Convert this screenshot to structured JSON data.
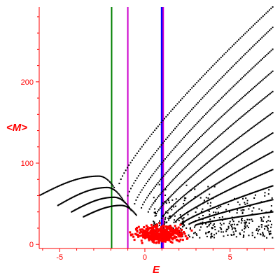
{
  "chart_data": {
    "type": "scatter",
    "xlabel": "E",
    "ylabel": "<M>",
    "xlim": [
      -6.2,
      7.6
    ],
    "ylim": [
      -5,
      292
    ],
    "x_ticks": [
      -5,
      0,
      5
    ],
    "y_ticks": [
      0,
      100,
      200
    ],
    "grid": false,
    "legend": "none",
    "vertical_lines": [
      {
        "x": -1.95,
        "color": "#008000"
      },
      {
        "x": -1.0,
        "color": "#cc00cc"
      },
      {
        "x": 1.0,
        "color": "#0000ff"
      },
      {
        "x": 1.08,
        "color": "#cc00cc"
      }
    ],
    "series": [
      {
        "color": "#000000",
        "description_points": "black curves",
        "curves": [
          {
            "x_start": -6.2,
            "y_start": 60,
            "x_peak": -2.7,
            "y_peak": 84,
            "x_end": -1.8,
            "y_end": 70
          },
          {
            "x_start": -5.1,
            "y_start": 48,
            "x_peak": -2.2,
            "y_peak": 70,
            "x_end": -1.2,
            "y_end": 52
          },
          {
            "x_start": -4.3,
            "y_start": 40,
            "x_peak": -1.8,
            "y_peak": 58,
            "x_end": -0.8,
            "y_end": 42
          },
          {
            "x_start": -3.6,
            "y_start": 34,
            "x_peak": -1.4,
            "y_peak": 48,
            "x_end": -0.5,
            "y_end": 36
          }
        ],
        "fans": [
          {
            "x0": -1.5,
            "y0": 75,
            "x1": 7.5,
            "y1": 292
          },
          {
            "x0": -1.0,
            "y0": 60,
            "x1": 7.5,
            "y1": 267
          },
          {
            "x0": -0.6,
            "y0": 50,
            "x1": 7.5,
            "y1": 240
          },
          {
            "x0": -0.2,
            "y0": 45,
            "x1": 7.5,
            "y1": 213
          },
          {
            "x0": 0.2,
            "y0": 40,
            "x1": 7.5,
            "y1": 188
          },
          {
            "x0": 0.6,
            "y0": 35,
            "x1": 7.5,
            "y1": 162
          },
          {
            "x0": 1.0,
            "y0": 32,
            "x1": 7.5,
            "y1": 137
          },
          {
            "x0": 1.4,
            "y0": 30,
            "x1": 7.5,
            "y1": 114
          },
          {
            "x0": 1.8,
            "y0": 28,
            "x1": 7.5,
            "y1": 92
          },
          {
            "x0": 2.2,
            "y0": 26,
            "x1": 7.5,
            "y1": 72
          },
          {
            "x0": 2.6,
            "y0": 25,
            "x1": 7.5,
            "y1": 55
          },
          {
            "x0": 3.0,
            "y0": 24,
            "x1": 7.5,
            "y1": 40
          }
        ]
      },
      {
        "color": "#ff0000",
        "cluster": {
          "x_center": 0.9,
          "y_center": 13,
          "x_spread": 1.3,
          "y_spread": 10,
          "count": 420
        }
      }
    ]
  }
}
